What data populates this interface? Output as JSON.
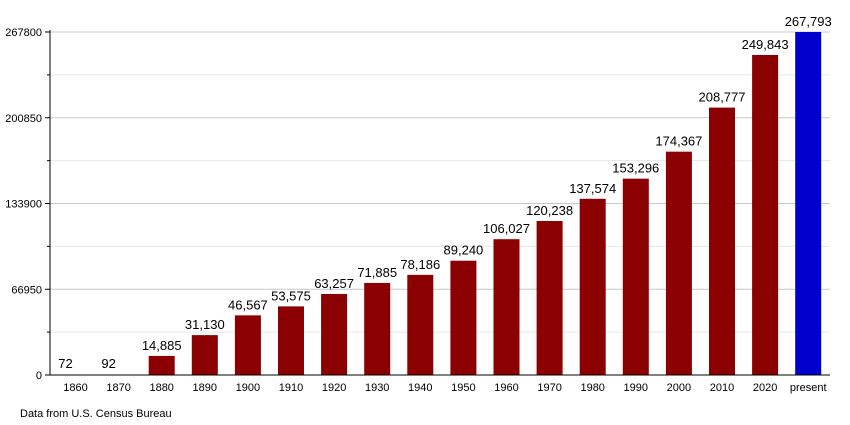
{
  "chart_data": {
    "type": "bar",
    "title": "",
    "xlabel": "",
    "ylabel": "",
    "categories": [
      "1860",
      "1870",
      "1880",
      "1890",
      "1900",
      "1910",
      "1920",
      "1930",
      "1940",
      "1950",
      "1960",
      "1970",
      "1980",
      "1990",
      "2000",
      "2010",
      "2020",
      "present"
    ],
    "values": [
      72,
      92,
      14885,
      31130,
      46567,
      53575,
      63257,
      71885,
      78186,
      89240,
      106027,
      120238,
      137574,
      153296,
      174367,
      208777,
      249843,
      267793
    ],
    "data_labels": [
      "72",
      "92",
      "14,885",
      "31,130",
      "46,567",
      "53,575",
      "63,257",
      "71,885",
      "78,186",
      "89,240",
      "106,027",
      "120,238",
      "137,574",
      "153,296",
      "174,367",
      "208,777",
      "249,843",
      "267,793"
    ],
    "yticks": [
      0,
      66950,
      133900,
      200850,
      267800
    ],
    "ylim": [
      0,
      267800
    ],
    "grid": true,
    "legend": "none",
    "colors": {
      "historical": "#8b0000",
      "present": "#0000cd",
      "grid": "#cccccc"
    },
    "source": "Data from U.S. Census Bureau"
  }
}
